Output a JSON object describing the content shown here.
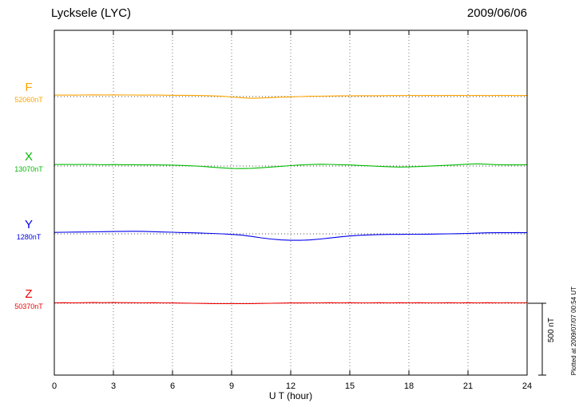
{
  "header": {
    "station": "Lycksele (LYC)",
    "date": "2009/06/06"
  },
  "footer_note": "Plotted at 2009/07/07 00:54 UT",
  "scale_bar": {
    "label": "500 nT",
    "value_nT": 500
  },
  "chart_data": {
    "type": "line",
    "title": "Lycksele (LYC) magnetogram 2009/06/06",
    "xlabel": "U T (hour)",
    "xlim": [
      0,
      24
    ],
    "x_ticks": [
      0,
      3,
      6,
      9,
      12,
      15,
      18,
      21,
      24
    ],
    "x_step_hours": 0.5,
    "grid": "dotted vertical lines at 3-hour ticks; dotted horizontal baseline per component",
    "legend_position": "left-side component labels",
    "values_are": "deviation in nT from each component baseline",
    "scale_reference": "500 nT vertical bar at lower right",
    "series": [
      {
        "name": "F",
        "baseline_label": "52060nT",
        "baseline_nT": 52060,
        "color": "#FFA500",
        "values": [
          10,
          11,
          10,
          11,
          12,
          11,
          12,
          11,
          11,
          10,
          11,
          10,
          9,
          9,
          8,
          7,
          5,
          2,
          -3,
          -8,
          -12,
          -10,
          -7,
          -4,
          -2,
          0,
          2,
          3,
          4,
          5,
          5,
          6,
          6,
          6,
          7,
          7,
          8,
          7,
          8,
          7,
          8,
          8,
          7,
          8,
          7,
          8,
          8,
          7,
          8
        ]
      },
      {
        "name": "X",
        "baseline_label": "13070nT",
        "baseline_nT": 13070,
        "color": "#00BB00",
        "values": [
          10,
          11,
          10,
          11,
          10,
          9,
          10,
          9,
          9,
          8,
          8,
          7,
          6,
          4,
          1,
          -3,
          -8,
          -13,
          -17,
          -18,
          -16,
          -12,
          -7,
          -2,
          3,
          7,
          10,
          12,
          11,
          9,
          7,
          4,
          1,
          -2,
          -5,
          -7,
          -6,
          -4,
          -1,
          2,
          5,
          9,
          13,
          15,
          12,
          9,
          8,
          8,
          9
        ]
      },
      {
        "name": "Y",
        "baseline_label": "1280nT",
        "baseline_nT": 1280,
        "color": "#0000EE",
        "values": [
          10,
          11,
          12,
          13,
          14,
          15,
          16,
          17,
          18,
          17,
          15,
          13,
          11,
          9,
          7,
          5,
          3,
          0,
          -4,
          -9,
          -18,
          -28,
          -36,
          -42,
          -45,
          -45,
          -42,
          -36,
          -29,
          -21,
          -15,
          -10,
          -7,
          -5,
          -4,
          -4,
          -3,
          -3,
          -2,
          -1,
          0,
          1,
          3,
          5,
          7,
          8,
          8,
          9,
          8
        ]
      },
      {
        "name": "Z",
        "baseline_label": "50370nT",
        "baseline_nT": 50370,
        "color": "#EE0000",
        "values": [
          3,
          4,
          3,
          4,
          5,
          4,
          5,
          4,
          4,
          3,
          4,
          3,
          2,
          1,
          0,
          -1,
          -2,
          -3,
          -2,
          -3,
          -2,
          -1,
          0,
          1,
          2,
          2,
          3,
          3,
          4,
          3,
          4,
          3,
          3,
          4,
          3,
          4,
          3,
          4,
          3,
          3,
          4,
          3,
          4,
          3,
          4,
          3,
          4,
          3,
          4
        ]
      }
    ]
  }
}
